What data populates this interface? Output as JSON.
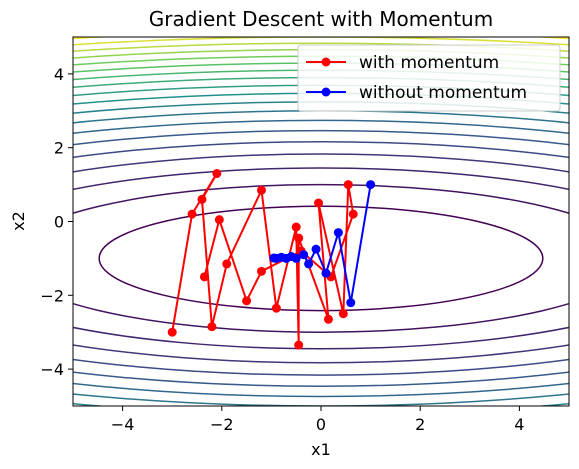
{
  "chart_data": {
    "type": "line",
    "title": "Gradient Descent with Momentum",
    "xlabel": "x1",
    "ylabel": "x2",
    "xlim": [
      -5,
      5
    ],
    "ylim": [
      -5,
      5
    ],
    "xticks": [
      -4,
      -2,
      0,
      2,
      4
    ],
    "yticks": [
      -4,
      -2,
      0,
      2,
      4
    ],
    "xtick_labels": [
      "−4",
      "−2",
      "0",
      "2",
      "4"
    ],
    "ytick_labels": [
      "−4",
      "−2",
      "0",
      "2",
      "4"
    ],
    "legend_position": "top-right",
    "contour": {
      "center": [
        0,
        -1
      ],
      "x_weight": 0.1,
      "y_weight": 1.0,
      "levels": [
        2,
        4,
        6,
        8,
        10,
        12,
        14,
        16,
        18,
        20,
        22,
        24,
        26,
        28,
        30,
        32,
        34,
        36,
        38
      ],
      "colormap": "viridis"
    },
    "series": [
      {
        "name": "with momentum",
        "color": "#ff0000",
        "marker": "circle",
        "points": [
          [
            -3.0,
            -3.0
          ],
          [
            -2.6,
            0.2
          ],
          [
            -2.1,
            1.3
          ],
          [
            -2.4,
            0.6
          ],
          [
            -2.2,
            -2.85
          ],
          [
            -1.9,
            -1.15
          ],
          [
            -1.2,
            0.85
          ],
          [
            -0.9,
            -2.35
          ],
          [
            -0.5,
            -0.15
          ],
          [
            -0.45,
            -3.35
          ],
          [
            -0.45,
            -0.45
          ],
          [
            0.15,
            -2.65
          ],
          [
            -0.05,
            0.5
          ],
          [
            0.45,
            -2.5
          ],
          [
            0.55,
            1.0
          ],
          [
            0.65,
            0.2
          ],
          [
            0.2,
            -1.5
          ],
          [
            -0.4,
            -0.8
          ],
          [
            -1.2,
            -1.35
          ],
          [
            -1.5,
            -2.15
          ],
          [
            -2.05,
            0.05
          ],
          [
            -2.35,
            -1.5
          ]
        ]
      },
      {
        "name": "without momentum",
        "color": "#0000ff",
        "marker": "circle",
        "points": [
          [
            1.0,
            1.0
          ],
          [
            0.6,
            -2.2
          ],
          [
            0.35,
            -0.3
          ],
          [
            0.1,
            -1.4
          ],
          [
            -0.1,
            -0.75
          ],
          [
            -0.25,
            -1.15
          ],
          [
            -0.35,
            -0.9
          ],
          [
            -0.5,
            -1.0
          ],
          [
            -0.6,
            -0.95
          ],
          [
            -0.7,
            -1.0
          ],
          [
            -0.8,
            -0.97
          ],
          [
            -0.9,
            -1.0
          ],
          [
            -0.95,
            -0.99
          ]
        ]
      }
    ]
  }
}
